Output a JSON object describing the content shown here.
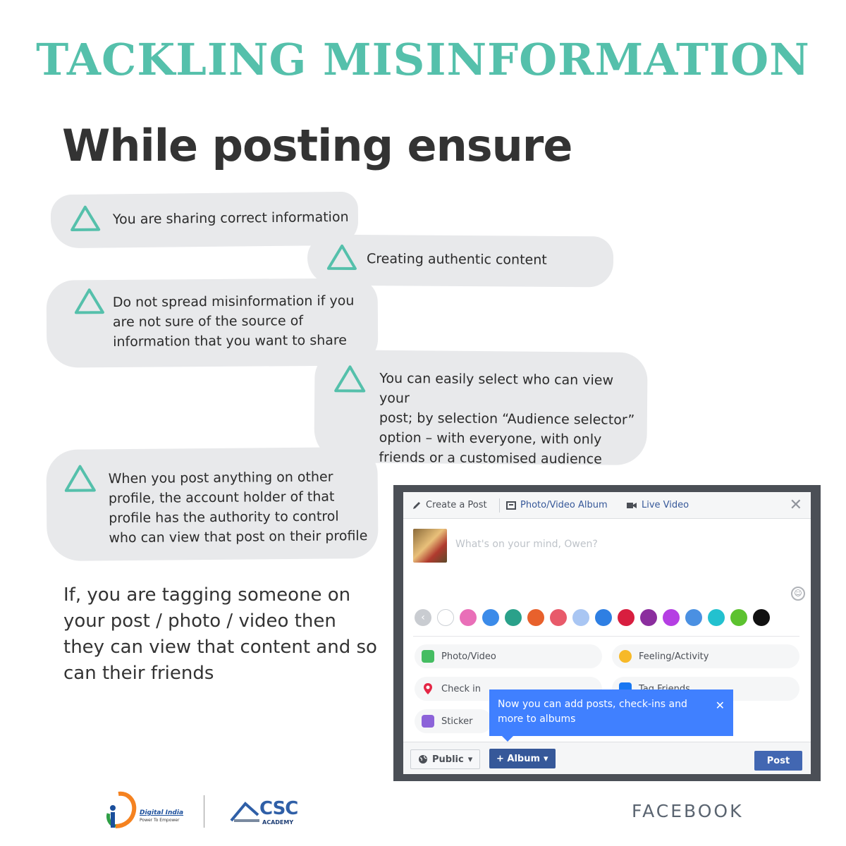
{
  "title": "TACKLING MISINFORMATION",
  "subtitle": "While posting ensure",
  "bullets": [
    {
      "lines": [
        "You are sharing correct information"
      ]
    },
    {
      "lines": [
        "Creating authentic content"
      ]
    },
    {
      "lines": [
        "Do not spread misinformation if you",
        "are not sure of the source of",
        "information that you want to share"
      ]
    },
    {
      "lines": [
        "You can easily select who can view your",
        "post; by selection “Audience selector”",
        "option – with everyone, with only",
        "friends or a customised audience"
      ]
    },
    {
      "lines": [
        "When you post anything on other",
        "profile, the account holder of that",
        "profile has the authority to control",
        "who can view that post on their profile"
      ]
    }
  ],
  "tagging_lines": [
    "If, you are tagging someone on",
    "your post / photo / video then",
    "they can view that content and so",
    "can their friends"
  ],
  "facebook_mock": {
    "tabs": {
      "create_post": "Create a Post",
      "photo_album": "Photo/Video Album",
      "live_video": "Live Video"
    },
    "close_glyph": "✕",
    "placeholder": "What's on your mind, Owen?",
    "swatch_colors": [
      "#ffffff",
      "#e96fb8",
      "#3b8be9",
      "#2aa18a",
      "#e8612c",
      "#e85a6a",
      "#a9c6f3",
      "#2e7fe3",
      "#d81e3f",
      "#8b2e9e",
      "#b53fe3",
      "#4a90e2",
      "#23c1cf",
      "#5cc22f",
      "#111111"
    ],
    "options": {
      "photo_video": "Photo/Video",
      "feeling_activity": "Feeling/Activity",
      "check_in": "Check in",
      "tag_friends": "Tag Friends",
      "sticker": "Sticker"
    },
    "tooltip": {
      "line1": "Now you can add posts, check-ins and",
      "line2": "more to albums",
      "close": "✕"
    },
    "public_label": "Public",
    "album_label": "+ Album",
    "post_label": "Post"
  },
  "footer": {
    "digital_india_name": "Digital India",
    "digital_india_tagline": "Power To Empower",
    "csc_name": "CSC",
    "csc_sub": "ACADEMY",
    "brand": "FACEBOOK"
  },
  "colors": {
    "accent": "#55c0ab",
    "bubble": "#e8e9eb",
    "text": "#333333",
    "fb_blue": "#4267b2",
    "tooltip": "#4080ff"
  }
}
